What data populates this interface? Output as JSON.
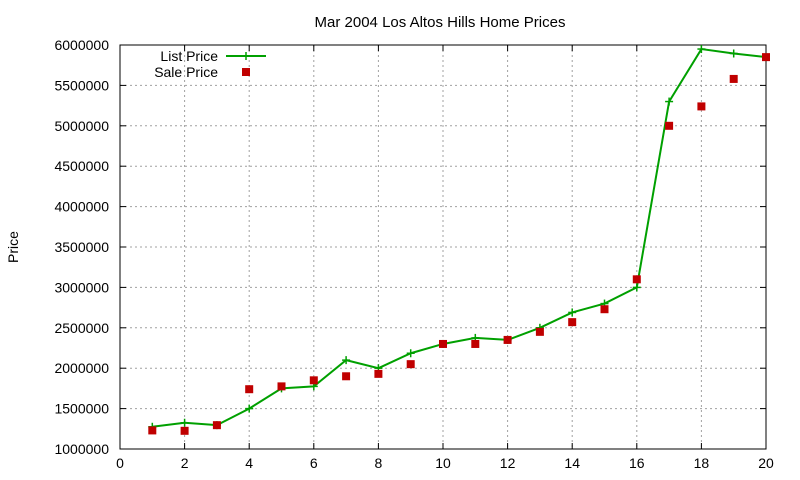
{
  "chart_data": {
    "type": "line",
    "title": "Mar 2004 Los Altos Hills Home Prices",
    "xlabel": "",
    "ylabel": "Price",
    "xlim": [
      0,
      20
    ],
    "ylim": [
      1000000,
      6000000
    ],
    "x_ticks": [
      0,
      2,
      4,
      6,
      8,
      10,
      12,
      14,
      16,
      18,
      20
    ],
    "y_ticks": [
      1000000,
      1500000,
      2000000,
      2500000,
      3000000,
      3500000,
      4000000,
      4500000,
      5000000,
      5500000,
      6000000
    ],
    "grid": true,
    "legend_position": "top-left",
    "series": [
      {
        "name": "List Price",
        "style": "line+cross",
        "color": "#00a000",
        "x": [
          1,
          2,
          3,
          4,
          5,
          6,
          7,
          8,
          9,
          10,
          11,
          12,
          13,
          14,
          15,
          16,
          17,
          18,
          19,
          20
        ],
        "values": [
          1275000,
          1325000,
          1295000,
          1500000,
          1750000,
          1775000,
          2100000,
          2000000,
          2185000,
          2300000,
          2375000,
          2350000,
          2500000,
          2690000,
          2800000,
          3000000,
          5300000,
          5950000,
          5895000,
          5850000
        ]
      },
      {
        "name": "Sale Price",
        "style": "square",
        "color": "#c00000",
        "x": [
          1,
          2,
          3,
          4,
          5,
          6,
          7,
          8,
          9,
          10,
          11,
          12,
          13,
          14,
          15,
          16,
          17,
          18,
          19,
          20
        ],
        "values": [
          1230000,
          1225000,
          1295000,
          1740000,
          1775000,
          1850000,
          1900000,
          1930000,
          2050000,
          2300000,
          2300000,
          2350000,
          2450000,
          2570000,
          2730000,
          3100000,
          5000000,
          5240000,
          5580000,
          5850000
        ]
      }
    ]
  }
}
